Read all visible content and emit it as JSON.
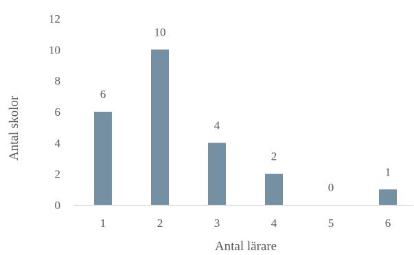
{
  "chart_data": {
    "type": "bar",
    "title": "",
    "xlabel": "Antal lärare",
    "ylabel": "Antal skolor",
    "categories": [
      "1",
      "2",
      "3",
      "4",
      "5",
      "6"
    ],
    "values": [
      6,
      10,
      4,
      2,
      0,
      1
    ],
    "ylim": [
      0,
      12
    ],
    "yticks": [
      0,
      2,
      4,
      6,
      8,
      10,
      12
    ],
    "data_labels": true,
    "grid": false,
    "legend": "none",
    "bar_color": "#758FA3",
    "axis_color": "#D9D9D9",
    "text_color": "#595959"
  }
}
